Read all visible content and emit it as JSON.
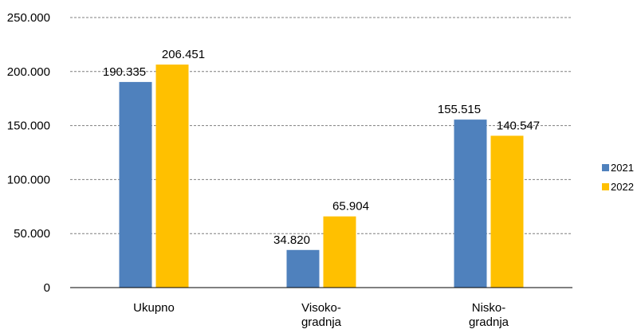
{
  "chart_data": {
    "type": "bar",
    "categories": [
      [
        "Ukupno"
      ],
      [
        "Visoko-",
        "gradnja"
      ],
      [
        "Nisko-",
        "gradnja"
      ]
    ],
    "series": [
      {
        "name": "2021",
        "color": "#4f81bd",
        "values": [
          190335,
          34820,
          155515
        ],
        "labels": [
          "190.335",
          "34.820",
          "155.515"
        ]
      },
      {
        "name": "2022",
        "color": "#ffc000",
        "values": [
          206451,
          65904,
          140547
        ],
        "labels": [
          "206.451",
          "65.904",
          "140.547"
        ]
      }
    ],
    "yticks": [
      0,
      50000,
      100000,
      150000,
      200000,
      250000
    ],
    "ytick_labels": [
      "0",
      "50.000",
      "100.000",
      "150.000",
      "200.000",
      "250.000"
    ],
    "ylim": [
      0,
      250000
    ],
    "grid": "dashed",
    "legend": "right"
  }
}
